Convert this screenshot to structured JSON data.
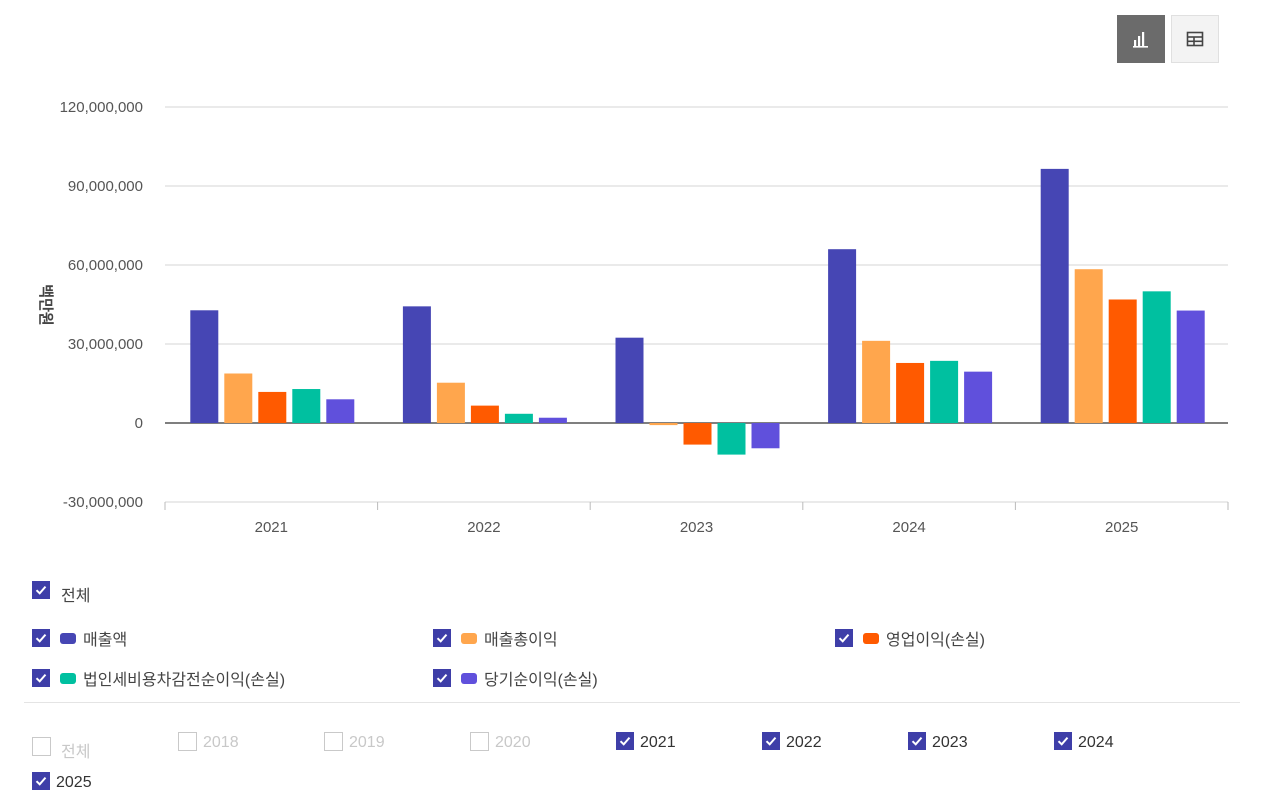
{
  "view_toggle": {
    "active": "chart-view",
    "icons": [
      "bar-chart-icon",
      "table-icon"
    ]
  },
  "chart_data": {
    "type": "bar",
    "ylabel": "백만원",
    "ylim": [
      -30000000,
      120000000
    ],
    "yticks": [
      -30000000,
      0,
      30000000,
      60000000,
      90000000,
      120000000
    ],
    "ytick_labels": [
      "-30,000,000",
      "0",
      "30,000,000",
      "60,000,000",
      "90,000,000",
      "120,000,000"
    ],
    "categories": [
      "2021",
      "2022",
      "2023",
      "2024",
      "2025"
    ],
    "grid": true,
    "series": [
      {
        "name": "매출액",
        "color": "#4646b4",
        "values": [
          42800000,
          44300000,
          32400000,
          66000000,
          96500000
        ]
      },
      {
        "name": "매출총이익",
        "color": "#ffa64d",
        "values": [
          18800000,
          15300000,
          -800000,
          31200000,
          58400000
        ]
      },
      {
        "name": "영업이익(손실)",
        "color": "#ff5a00",
        "values": [
          11800000,
          6600000,
          -8200000,
          22800000,
          46900000
        ]
      },
      {
        "name": "법인세비용차감전순이익(손실)",
        "color": "#00c0a0",
        "values": [
          12900000,
          3500000,
          -12000000,
          23600000,
          50000000
        ]
      },
      {
        "name": "당기순이익(손실)",
        "color": "#6050dc",
        "values": [
          9000000,
          2000000,
          -9600000,
          19500000,
          42700000
        ]
      }
    ]
  },
  "legend": {
    "all_label": "전체",
    "all_checked": true,
    "items": [
      {
        "label": "매출액",
        "checked": true
      },
      {
        "label": "매출총이익",
        "checked": true
      },
      {
        "label": "영업이익(손실)",
        "checked": true
      },
      {
        "label": "법인세비용차감전순이익(손실)",
        "checked": true
      },
      {
        "label": "당기순이익(손실)",
        "checked": true
      }
    ]
  },
  "years": {
    "all_label": "전체",
    "all_checked": false,
    "items": [
      {
        "label": "2018",
        "checked": false
      },
      {
        "label": "2019",
        "checked": false
      },
      {
        "label": "2020",
        "checked": false
      },
      {
        "label": "2021",
        "checked": true
      },
      {
        "label": "2022",
        "checked": true
      },
      {
        "label": "2023",
        "checked": true
      },
      {
        "label": "2024",
        "checked": true
      },
      {
        "label": "2025",
        "checked": true
      }
    ]
  }
}
